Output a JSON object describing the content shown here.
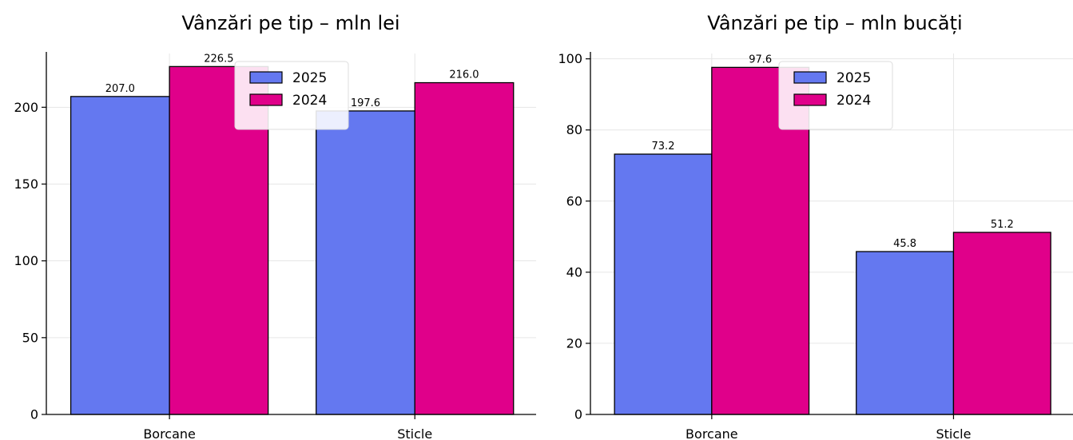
{
  "chart_data": [
    {
      "type": "bar",
      "title": "Vânzări pe tip – mln lei",
      "categories": [
        "Borcane",
        "Sticle"
      ],
      "series": [
        {
          "name": "2025",
          "values": [
            207.0,
            197.6
          ],
          "labels": [
            "207.0",
            "197.6"
          ],
          "color": "#6478F0"
        },
        {
          "name": "2024",
          "values": [
            226.5,
            216.0
          ],
          "labels": [
            "226.5",
            "216.0"
          ],
          "color": "#E0008A"
        }
      ],
      "yticks": [
        0,
        50,
        100,
        150,
        200
      ],
      "ylim": [
        0,
        235
      ],
      "grid": true,
      "legend": "top-center"
    },
    {
      "type": "bar",
      "title": "Vânzări pe tip – mln bucăți",
      "categories": [
        "Borcane",
        "Sticle"
      ],
      "series": [
        {
          "name": "2025",
          "values": [
            73.2,
            45.8
          ],
          "labels": [
            "73.2",
            "45.8"
          ],
          "color": "#6478F0"
        },
        {
          "name": "2024",
          "values": [
            97.6,
            51.2
          ],
          "labels": [
            "97.6",
            "51.2"
          ],
          "color": "#E0008A"
        }
      ],
      "yticks": [
        0,
        20,
        40,
        60,
        80,
        100
      ],
      "ylim": [
        0,
        101.5
      ],
      "grid": true,
      "legend": "top-center"
    }
  ]
}
